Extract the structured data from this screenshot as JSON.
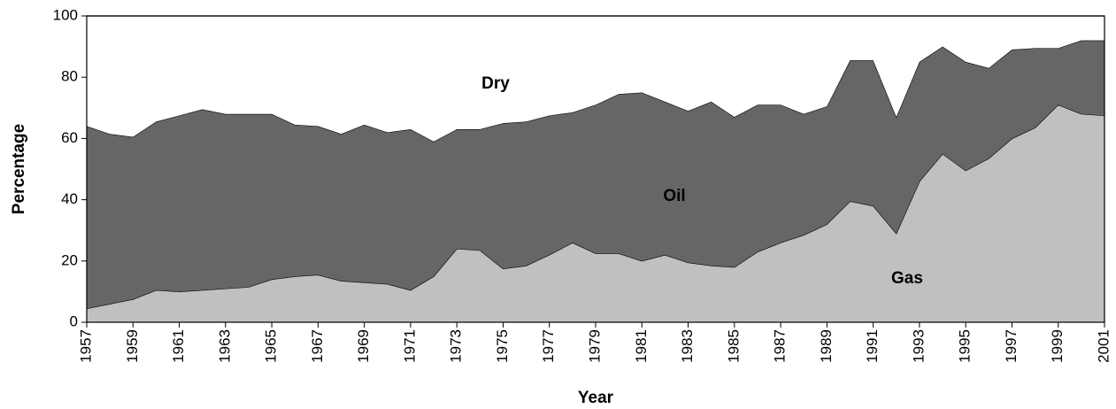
{
  "chart_data": {
    "type": "stacked_area",
    "x_label": "Year",
    "y_label": "Percentage",
    "x": [
      1957,
      1958,
      1959,
      1960,
      1961,
      1962,
      1963,
      1964,
      1965,
      1966,
      1967,
      1968,
      1969,
      1970,
      1971,
      1972,
      1973,
      1974,
      1975,
      1976,
      1977,
      1978,
      1979,
      1980,
      1981,
      1982,
      1983,
      1984,
      1985,
      1986,
      1987,
      1988,
      1989,
      1990,
      1991,
      1992,
      1993,
      1994,
      1995,
      1996,
      1997,
      1998,
      1999,
      2000,
      2001
    ],
    "series": [
      {
        "name": "Gas",
        "color": "#c0c0c0",
        "values": [
          4.5,
          6,
          7.5,
          10.5,
          10,
          10.5,
          11,
          11.5,
          14,
          15,
          15.5,
          13.5,
          13,
          12.5,
          10.5,
          15,
          24,
          23.5,
          17.5,
          18.5,
          22,
          26,
          22.5,
          22.5,
          20,
          22,
          19.5,
          18.5,
          18,
          23,
          26,
          28.5,
          32,
          39.5,
          38,
          29,
          46,
          55,
          49.5,
          53.5,
          60,
          63.5,
          71,
          68,
          67.5
        ]
      },
      {
        "name": "Oil",
        "color": "#666666",
        "values": [
          59.5,
          55.5,
          53,
          55,
          57.5,
          59,
          57,
          56.5,
          54,
          49.5,
          48.5,
          48,
          51.5,
          49.5,
          52.5,
          44,
          39,
          39.5,
          47.5,
          47,
          45.5,
          42.5,
          48.5,
          52,
          55,
          50,
          49.5,
          53.5,
          49,
          48,
          45,
          39.5,
          38.5,
          46,
          47.5,
          38,
          39,
          35,
          35.5,
          29.5,
          29,
          26,
          18.5,
          24,
          24.5
        ]
      },
      {
        "name": "Dry",
        "color": "#ffffff",
        "values": [
          36,
          38.5,
          39.5,
          34.5,
          32.5,
          30.5,
          32,
          32,
          32,
          35.5,
          36,
          38.5,
          35.5,
          38,
          37,
          41,
          37,
          37,
          35,
          34.5,
          32.5,
          31.5,
          29,
          25.5,
          25,
          28,
          31,
          28,
          33,
          29,
          29,
          32,
          29.5,
          14.5,
          14.5,
          33,
          15,
          10,
          15,
          17,
          11,
          10.5,
          10.5,
          8,
          8
        ]
      }
    ],
    "xlim": [
      1957,
      2001
    ],
    "xticks": [
      1957,
      1959,
      1961,
      1963,
      1965,
      1967,
      1969,
      1971,
      1973,
      1975,
      1977,
      1979,
      1981,
      1983,
      1985,
      1987,
      1989,
      1991,
      1993,
      1995,
      1997,
      1999,
      2001
    ],
    "ylim": [
      0,
      100
    ],
    "yticks": [
      0,
      20,
      40,
      60,
      80,
      100
    ]
  }
}
